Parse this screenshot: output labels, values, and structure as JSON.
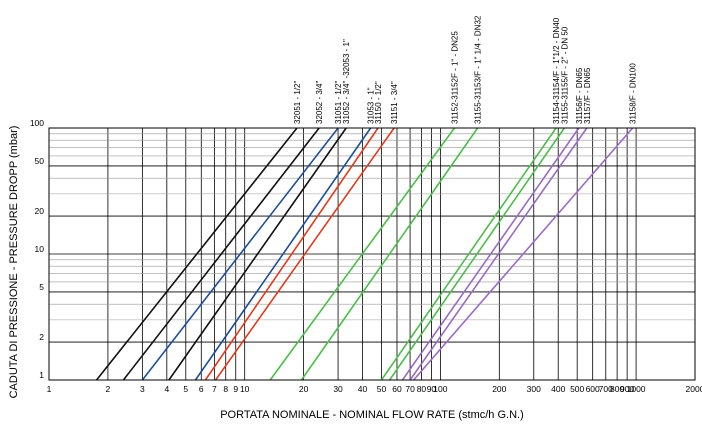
{
  "chart_data": {
    "type": "line",
    "xlabel": "PORTATA NOMINALE - NOMINAL FLOW RATE (stmc/h G.N.)",
    "ylabel": "CADUTA DI PRESSIONE - PRESSURE DROPP (mbar)",
    "x_scale": "log",
    "y_scale": "log",
    "xlim": [
      1,
      2000
    ],
    "ylim": [
      1,
      100
    ],
    "grid": true,
    "x_ticks": [
      {
        "value": 1,
        "label": "1"
      },
      {
        "value": 2,
        "label": "2"
      },
      {
        "value": 3,
        "label": "3"
      },
      {
        "value": 4,
        "label": "4"
      },
      {
        "value": 5,
        "label": "5"
      },
      {
        "value": 6,
        "label": "6"
      },
      {
        "value": 7,
        "label": "7"
      },
      {
        "value": 8,
        "label": "8"
      },
      {
        "value": 9,
        "label": "9"
      },
      {
        "value": 10,
        "label": "10"
      },
      {
        "value": 20,
        "label": "20"
      },
      {
        "value": 30,
        "label": "30"
      },
      {
        "value": 40,
        "label": "40"
      },
      {
        "value": 50,
        "label": "50"
      },
      {
        "value": 60,
        "label": "60"
      },
      {
        "value": 70,
        "label": "70"
      },
      {
        "value": 80,
        "label": "80"
      },
      {
        "value": 90,
        "label": "90"
      },
      {
        "value": 100,
        "label": "100"
      },
      {
        "value": 200,
        "label": "200"
      },
      {
        "value": 300,
        "label": "300"
      },
      {
        "value": 400,
        "label": "400"
      },
      {
        "value": 500,
        "label": "500"
      },
      {
        "value": 600,
        "label": "600"
      },
      {
        "value": 700,
        "label": "700"
      },
      {
        "value": 800,
        "label": "800"
      },
      {
        "value": 900,
        "label": "900"
      },
      {
        "value": 1000,
        "label": "1000"
      },
      {
        "value": 2000,
        "label": "2000"
      }
    ],
    "y_ticks": [
      {
        "value": 1,
        "label": "1"
      },
      {
        "value": 2,
        "label": "2"
      },
      {
        "value": 5,
        "label": "5"
      },
      {
        "value": 10,
        "label": "10"
      },
      {
        "value": 20,
        "label": "20"
      },
      {
        "value": 50,
        "label": "50"
      },
      {
        "value": 100,
        "label": "100"
      }
    ],
    "y_minor": [
      3,
      4,
      6,
      7,
      8,
      9,
      30,
      40,
      60,
      70,
      80,
      90
    ],
    "series": [
      {
        "name": "32051 - 1/2\"",
        "color": "#111111",
        "points": [
          [
            1.75,
            1
          ],
          [
            18.5,
            100
          ]
        ]
      },
      {
        "name": "32052 - 3/4\"",
        "color": "#111111",
        "points": [
          [
            2.4,
            1
          ],
          [
            24,
            100
          ]
        ]
      },
      {
        "name": "31051 - 1/2\"",
        "color": "#1f4e9c",
        "points": [
          [
            3.0,
            1
          ],
          [
            30,
            100
          ]
        ]
      },
      {
        "name": "31052 - 3/4\" -32053 - 1\"",
        "color": "#111111",
        "points": [
          [
            4.1,
            1
          ],
          [
            33,
            100
          ]
        ]
      },
      {
        "name": "31053 - 1\"",
        "color": "#1f4e9c",
        "points": [
          [
            5.6,
            1
          ],
          [
            44,
            100
          ]
        ]
      },
      {
        "name": "31150 - 1/2\"",
        "color": "#e33b1c",
        "points": [
          [
            6.3,
            1
          ],
          [
            48,
            100
          ]
        ]
      },
      {
        "name": "31151 - 3/4\"",
        "color": "#e33b1c",
        "points": [
          [
            7.1,
            1
          ],
          [
            58,
            100
          ]
        ]
      },
      {
        "name": "31152-31152F - 1\" - DN25",
        "color": "#4cbf4a",
        "points": [
          [
            13.5,
            1
          ],
          [
            118,
            100
          ]
        ]
      },
      {
        "name": "31155-31153/F - 1\" 1/4 - DN32",
        "color": "#4cbf4a",
        "points": [
          [
            19.5,
            1
          ],
          [
            155,
            100
          ]
        ]
      },
      {
        "name": "31154-31154/F - 1\"1/2 - DN40",
        "color": "#4cbf4a",
        "points": [
          [
            50,
            1
          ],
          [
            390,
            100
          ]
        ]
      },
      {
        "name": "31155-31155/F - 2\" - DN 50",
        "color": "#4cbf4a",
        "points": [
          [
            55,
            1
          ],
          [
            430,
            100
          ]
        ]
      },
      {
        "name": "31156/F - DN65",
        "color": "#9b6bc4",
        "points": [
          [
            64,
            1
          ],
          [
            510,
            100
          ]
        ]
      },
      {
        "name": "31157/F - DN65",
        "color": "#9b6bc4",
        "points": [
          [
            70,
            1
          ],
          [
            560,
            100
          ]
        ]
      },
      {
        "name": "31158/F - DN100",
        "color": "#9b6bc4",
        "points": [
          [
            73,
            1
          ],
          [
            960,
            100
          ]
        ]
      }
    ]
  }
}
